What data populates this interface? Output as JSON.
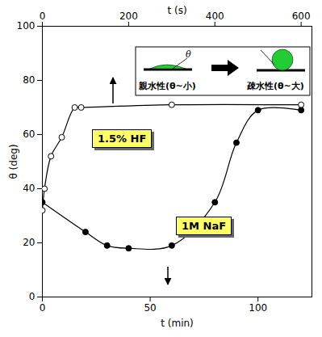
{
  "chart_data": {
    "type": "line",
    "xlabel": "t (min)",
    "x2label": "t (s)",
    "ylabel": "θ (deg)",
    "xlim": [
      0,
      125
    ],
    "xticks": [
      0,
      50,
      100
    ],
    "x2lim": [
      0,
      625
    ],
    "x2ticks": [
      0,
      200,
      400,
      600
    ],
    "ylim": [
      0,
      100
    ],
    "yticks": [
      0,
      20,
      40,
      60,
      80,
      100
    ],
    "grid": false,
    "annotations": [
      "親水性(θ~小)",
      "疎水性(θ~大)",
      "θ"
    ],
    "series": [
      {
        "name": "1.5% HF",
        "axis": "x2",
        "color": "#000000",
        "marker": "open circle",
        "line_style": "solid",
        "x": [
          0,
          5,
          20,
          45,
          75,
          90,
          300,
          600
        ],
        "values": [
          32,
          40,
          52,
          59,
          70,
          70,
          71,
          71
        ]
      },
      {
        "name": "1M NaF",
        "color": "#000000",
        "marker": "circle",
        "line_style": "solid",
        "x": [
          0,
          20,
          30,
          40,
          60,
          80,
          90,
          100,
          120
        ],
        "values": [
          35,
          24,
          19,
          18,
          19,
          35,
          57,
          69,
          69
        ]
      }
    ]
  }
}
